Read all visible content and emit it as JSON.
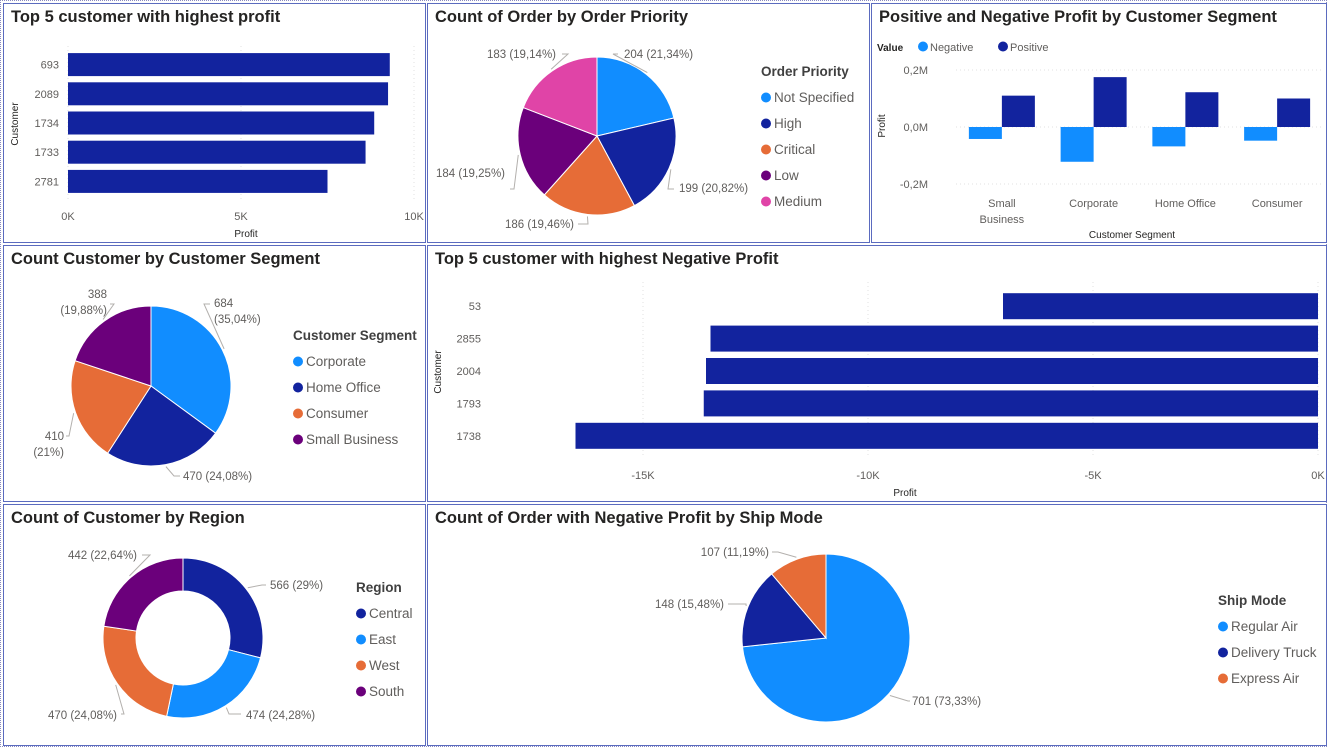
{
  "colors": {
    "dark_blue": "#12239E",
    "light_blue": "#118DFF",
    "orange": "#E66C37",
    "purple": "#6B007B",
    "pink": "#E044A7"
  },
  "panels": {
    "top_customers": {
      "title": "Top 5 customer with highest profit"
    },
    "order_priority": {
      "title": "Count of Order by Order Priority"
    },
    "segment_profit": {
      "title": "Positive and Negative Profit by Customer Segment"
    },
    "customer_segment": {
      "title": "Count Customer by Customer Segment"
    },
    "negative_customers": {
      "title": "Top 5 customer with highest Negative Profit"
    },
    "region": {
      "title": "Count of Customer by Region"
    },
    "ship_mode": {
      "title": "Count of Order with Negative Profit by Ship Mode"
    }
  },
  "chart_data": [
    {
      "id": "top_customers",
      "type": "bar",
      "orientation": "horizontal",
      "title": "Top 5 customer with highest profit",
      "xlabel": "Profit",
      "ylabel": "Customer",
      "categories": [
        "693",
        "2089",
        "1734",
        "1733",
        "2781"
      ],
      "values": [
        9300,
        9250,
        8850,
        8600,
        7500
      ],
      "xlim": [
        0,
        10000
      ],
      "xticks": [
        "0K",
        "5K",
        "10K"
      ],
      "color": "#12239E"
    },
    {
      "id": "order_priority",
      "type": "pie",
      "title": "Count of Order by Order Priority",
      "legend_title": "Order Priority",
      "legend_position": "right",
      "slices": [
        {
          "label": "Not Specified",
          "value": 204,
          "data_label": "204 (21,34%)",
          "color": "#118DFF"
        },
        {
          "label": "High",
          "value": 199,
          "data_label": "199 (20,82%)",
          "color": "#12239E"
        },
        {
          "label": "Critical",
          "value": 186,
          "data_label": "186 (19,46%)",
          "color": "#E66C37"
        },
        {
          "label": "Low",
          "value": 184,
          "data_label": "184 (19,25%)",
          "color": "#6B007B"
        },
        {
          "label": "Medium",
          "value": 183,
          "data_label": "183 (19,14%)",
          "color": "#E044A7"
        }
      ]
    },
    {
      "id": "segment_profit",
      "type": "bar",
      "orientation": "vertical",
      "title": "Positive and Negative Profit by Customer Segment",
      "xlabel": "Customer Segment",
      "ylabel": "Profit",
      "legend_title": "Value",
      "legend_position": "top-left",
      "categories": [
        "Small Business",
        "Corporate",
        "Home Office",
        "Consumer"
      ],
      "category_labels": [
        [
          "Small",
          "Business"
        ],
        [
          "Corporate"
        ],
        [
          "Home Office"
        ],
        [
          "Consumer"
        ]
      ],
      "ylim": [
        -0.2,
        0.2
      ],
      "yticks": [
        "0,2M",
        "0,0M",
        "-0,2M"
      ],
      "series": [
        {
          "name": "Negative",
          "color": "#118DFF",
          "values": [
            -0.042,
            -0.122,
            -0.068,
            -0.048
          ]
        },
        {
          "name": "Positive",
          "color": "#12239E",
          "values": [
            0.11,
            0.175,
            0.122,
            0.1
          ]
        }
      ]
    },
    {
      "id": "customer_segment",
      "type": "pie",
      "title": "Count Customer by Customer Segment",
      "legend_title": "Customer Segment",
      "legend_position": "right",
      "slices": [
        {
          "label": "Corporate",
          "value": 684,
          "data_label": [
            "684",
            "(35,04%)"
          ],
          "color": "#118DFF"
        },
        {
          "label": "Home Office",
          "value": 470,
          "data_label": [
            "470 (24,08%)"
          ],
          "color": "#12239E"
        },
        {
          "label": "Consumer",
          "value": 410,
          "data_label": [
            "410",
            "(21%)"
          ],
          "color": "#E66C37"
        },
        {
          "label": "Small Business",
          "value": 388,
          "data_label": [
            "388",
            "(19,88%)"
          ],
          "color": "#6B007B"
        }
      ]
    },
    {
      "id": "negative_customers",
      "type": "bar",
      "orientation": "horizontal",
      "title": "Top 5 customer with highest Negative Profit",
      "xlabel": "Profit",
      "ylabel": "Customer",
      "categories": [
        "53",
        "2855",
        "2004",
        "1793",
        "1738"
      ],
      "values": [
        -7000,
        -13500,
        -13600,
        -13650,
        -16500
      ],
      "xlim": [
        -17000,
        0
      ],
      "xticks": [
        {
          "value": -15000,
          "label": "-15K"
        },
        {
          "value": -10000,
          "label": "-10K"
        },
        {
          "value": -5000,
          "label": "-5K"
        },
        {
          "value": 0,
          "label": "0K"
        }
      ],
      "color": "#12239E"
    },
    {
      "id": "region",
      "type": "donut",
      "title": "Count of Customer by Region",
      "legend_title": "Region",
      "legend_position": "right",
      "slices": [
        {
          "label": "Central",
          "value": 566,
          "data_label": "566 (29%)",
          "color": "#12239E"
        },
        {
          "label": "East",
          "value": 474,
          "data_label": "474 (24,28%)",
          "color": "#118DFF"
        },
        {
          "label": "West",
          "value": 470,
          "data_label": "470 (24,08%)",
          "color": "#E66C37"
        },
        {
          "label": "South",
          "value": 442,
          "data_label": "442 (22,64%)",
          "color": "#6B007B"
        }
      ]
    },
    {
      "id": "ship_mode",
      "type": "pie",
      "title": "Count of Order with Negative Profit by Ship Mode",
      "legend_title": "Ship Mode",
      "legend_position": "right",
      "slices": [
        {
          "label": "Regular Air",
          "value": 701,
          "data_label": "701 (73,33%)",
          "color": "#118DFF"
        },
        {
          "label": "Delivery Truck",
          "value": 148,
          "data_label": "148 (15,48%)",
          "color": "#12239E"
        },
        {
          "label": "Express Air",
          "value": 107,
          "data_label": "107 (11,19%)",
          "color": "#E66C37"
        }
      ]
    }
  ]
}
